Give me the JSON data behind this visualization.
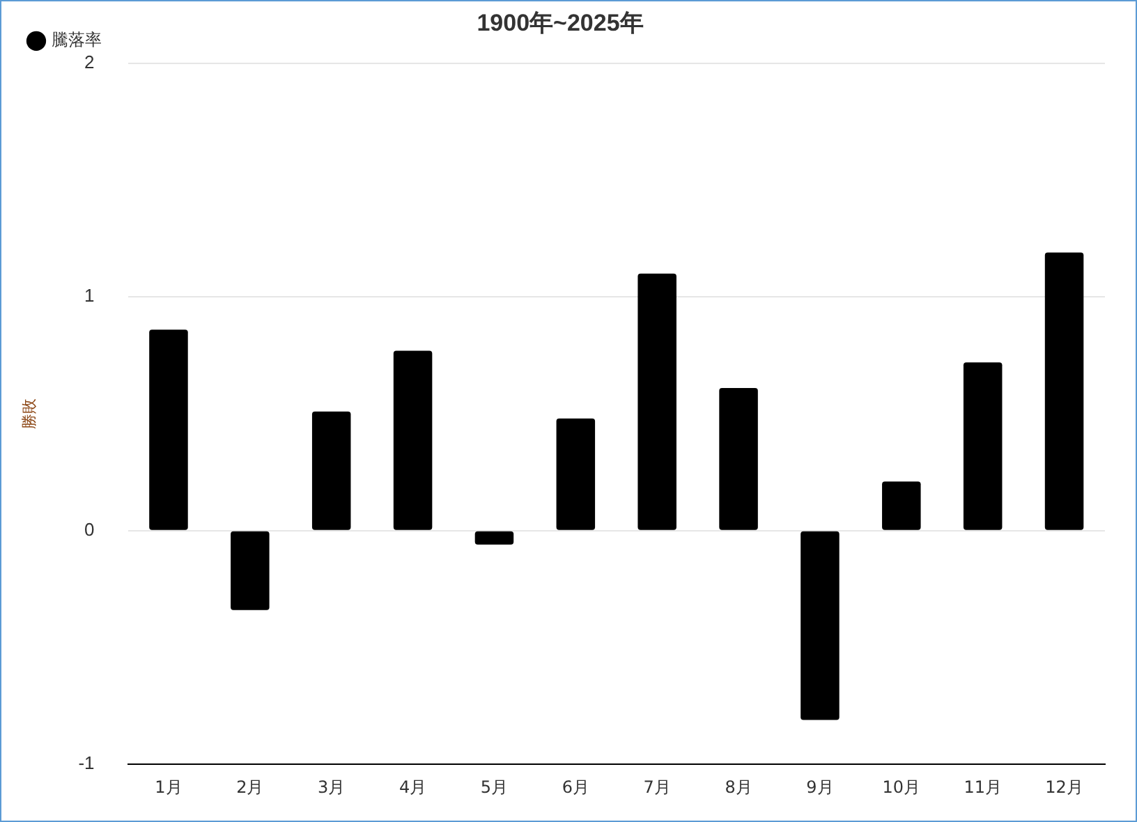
{
  "chart_data": {
    "type": "bar",
    "title": "1900年~2025年",
    "ylabel": "勝敗",
    "categories": [
      "1月",
      "2月",
      "3月",
      "4月",
      "5月",
      "6月",
      "7月",
      "8月",
      "9月",
      "10月",
      "11月",
      "12月"
    ],
    "series": [
      {
        "name": "騰落率",
        "color": "#000000",
        "values": [
          0.86,
          -0.34,
          0.51,
          0.77,
          -0.06,
          0.48,
          1.1,
          0.61,
          -0.81,
          0.21,
          0.72,
          1.19
        ]
      }
    ],
    "ylim": [
      -1,
      2
    ],
    "yticks": [
      -1,
      0,
      1,
      2
    ],
    "grid": "y",
    "legend": "top left"
  }
}
